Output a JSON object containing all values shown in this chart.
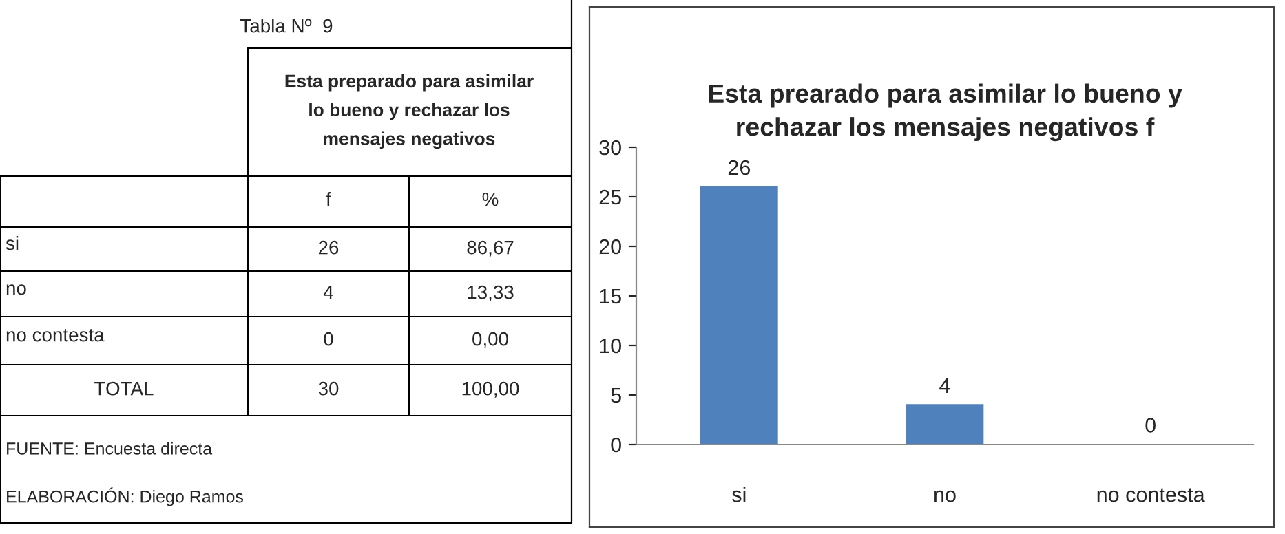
{
  "chart_data": [
    {
      "type": "other",
      "title": "Tabla Nº  9",
      "annotations": [
        "Esta preparado para asimilar\nlo bueno y rechazar los\nmensajes negativos",
        "f",
        "%",
        "si",
        "26",
        "86,67",
        "no",
        "4",
        "13,33",
        "no contesta",
        "0",
        "0,00",
        "TOTAL",
        "30",
        "100,00",
        "FUENTE: Encuesta directa",
        "ELABORACIÓN: Diego Ramos"
      ]
    },
    {
      "type": "bar",
      "title": "Esta prearado para asimilar lo bueno y\nrechazar los mensajes negativos f",
      "categories": [
        "si",
        "no",
        "no contesta"
      ],
      "values": [
        26,
        4,
        0
      ],
      "color": "#4f81bd",
      "ylim": [
        0,
        30
      ],
      "yticks": [
        0,
        5,
        10,
        15,
        20,
        25,
        30
      ],
      "data_labels": true,
      "grid": false,
      "legend": false
    }
  ]
}
